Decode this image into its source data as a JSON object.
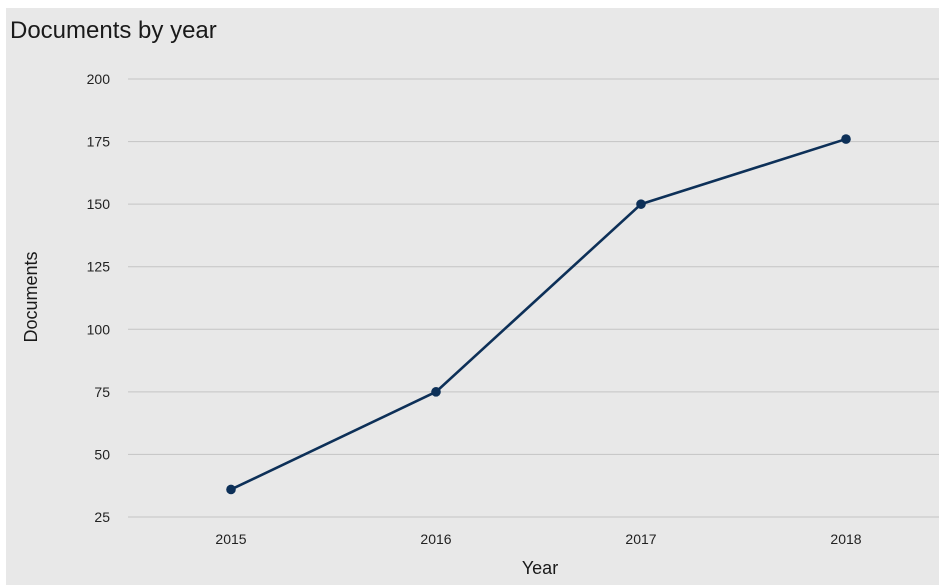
{
  "chart_data": {
    "type": "line",
    "title": "Documents by year",
    "xlabel": "Year",
    "ylabel": "Documents",
    "categories": [
      "2015",
      "2016",
      "2017",
      "2018"
    ],
    "series": [
      {
        "values": [
          36,
          75,
          150,
          176
        ]
      }
    ],
    "yticks": [
      "25",
      "50",
      "75",
      "100",
      "125",
      "150",
      "175",
      "200"
    ],
    "ylim": [
      25,
      200
    ],
    "grid": true,
    "colors": {
      "line": "#0d3058",
      "marker": "#0d3058",
      "background": "#e8e8e8",
      "grid": "#c4c4c4"
    }
  }
}
